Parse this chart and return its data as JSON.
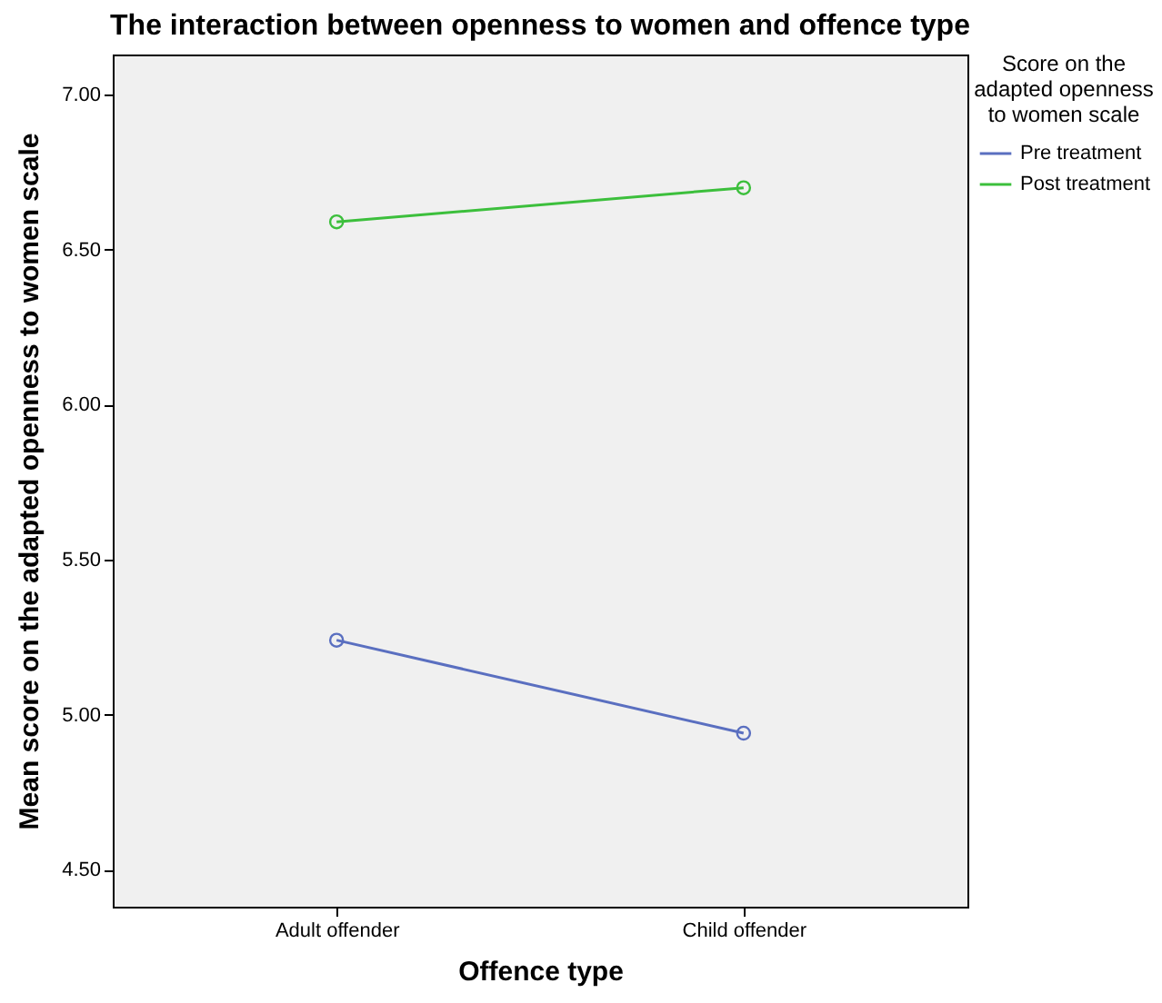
{
  "chart_data": {
    "type": "line",
    "title": "The interaction between openness to women and offence type",
    "xlabel": "Offence type",
    "ylabel": "Mean score on the adapted openness to women scale",
    "legend_title": "Score on the adapted openness to women scale",
    "categories": [
      "Adult offender",
      "Child offender"
    ],
    "series": [
      {
        "name": "Pre treatment",
        "color": "#5a6fc0",
        "values": [
          5.24,
          4.94
        ]
      },
      {
        "name": "Post treatment",
        "color": "#3cbf3c",
        "values": [
          6.59,
          6.7
        ]
      }
    ],
    "ylim": [
      4.38,
      7.13
    ],
    "yticks": [
      {
        "value": 4.5,
        "label": "4.50"
      },
      {
        "value": 5,
        "label": "5.00"
      },
      {
        "value": 5.5,
        "label": "5.50"
      },
      {
        "value": 6,
        "label": "6.00"
      },
      {
        "value": 6.5,
        "label": "6.50"
      },
      {
        "value": 7,
        "label": "7.00"
      }
    ],
    "grid": false,
    "legend": "top right",
    "marker": "circle",
    "line_style": "solid"
  }
}
